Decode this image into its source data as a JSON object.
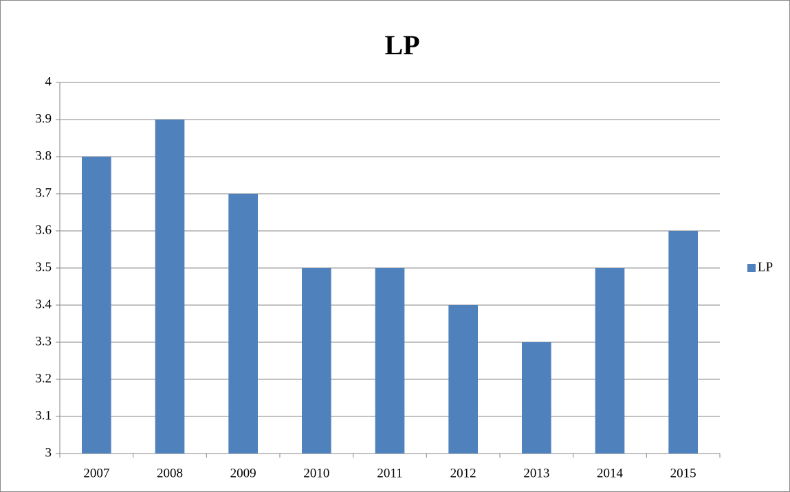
{
  "chart_data": {
    "type": "bar",
    "title": "LP",
    "categories": [
      "2007",
      "2008",
      "2009",
      "2010",
      "2011",
      "2012",
      "2013",
      "2014",
      "2015"
    ],
    "series": [
      {
        "name": "LP",
        "color": "#4f81bd",
        "values": [
          3.8,
          3.9,
          3.7,
          3.5,
          3.5,
          3.4,
          3.3,
          3.5,
          3.6
        ]
      }
    ],
    "ylim": [
      3,
      4
    ],
    "yticks": [
      3,
      3.1,
      3.2,
      3.3,
      3.4,
      3.5,
      3.6,
      3.7,
      3.8,
      3.9,
      4
    ],
    "grid": true,
    "legend": "right"
  }
}
